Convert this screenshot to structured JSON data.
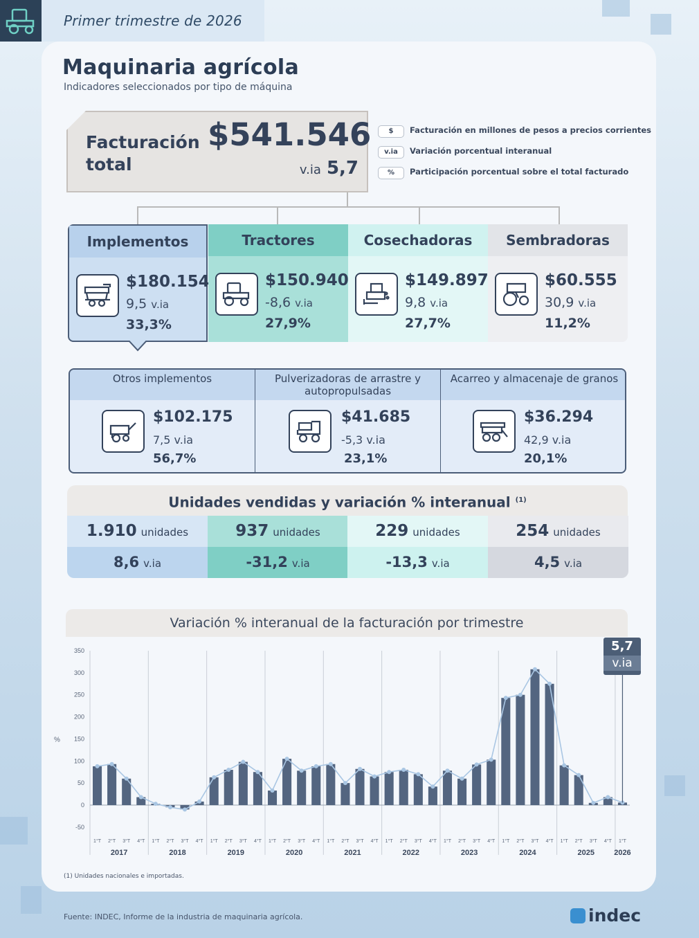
{
  "header": {
    "period": "Primer trimestre de 2026",
    "title": "Maquinaria agrícola",
    "subtitle": "Indicadores seleccionados por tipo de máquina"
  },
  "total": {
    "label_line1": "Facturación",
    "label_line2": "total",
    "value": "$541.546",
    "via_label": "v.ia",
    "via_value": "5,7"
  },
  "legend": [
    {
      "tag": "$",
      "text": "Facturación en millones de pesos a precios corrientes"
    },
    {
      "tag": "v.ia",
      "text": "Variación porcentual interanual"
    },
    {
      "tag": "%",
      "text": "Participación porcentual sobre el total facturado"
    }
  ],
  "categories": [
    {
      "name": "Implementos",
      "value": "$180.154",
      "via": "9,5",
      "via_label": "v.ia",
      "pct": "33,3%",
      "icon": "implement-icon",
      "color": "#cddff2",
      "head_color": "#b8d1ec"
    },
    {
      "name": "Tractores",
      "value": "$150.940",
      "via": "-8,6",
      "via_label": "v.ia",
      "pct": "27,9%",
      "icon": "tractor-icon",
      "color": "#a9e0d9",
      "head_color": "#7fcfc5"
    },
    {
      "name": "Cosechadoras",
      "value": "$149.897",
      "via": "9,8",
      "via_label": "v.ia",
      "pct": "27,7%",
      "icon": "harvester-icon",
      "color": "#e3f7f6",
      "head_color": "#d0f2f0"
    },
    {
      "name": "Sembradoras",
      "value": "$60.555",
      "via": "30,9",
      "via_label": "v.ia",
      "pct": "11,2%",
      "icon": "seeder-icon",
      "color": "#eeeff2",
      "head_color": "#e2e4e8"
    }
  ],
  "implementos_sub": [
    {
      "name": "Otros implementos",
      "value": "$102.175",
      "via": "7,5",
      "via_label": "v.ia",
      "pct": "56,7%",
      "icon": "trailer-icon"
    },
    {
      "name": "Pulverizadoras de arrastre y autopropulsadas",
      "value": "$41.685",
      "via": "-5,3",
      "via_label": "v.ia",
      "pct": "23,1%",
      "icon": "sprayer-icon"
    },
    {
      "name": "Acarreo y almacenaje de granos",
      "value": "$36.294",
      "via": "42,9",
      "via_label": "v.ia",
      "pct": "20,1%",
      "icon": "grain-cart-icon"
    }
  ],
  "units": {
    "title": "Unidades vendidas y variación % interanual",
    "note_mark": "(1)",
    "unit_word": "unidades",
    "via_label": "v.ia",
    "items": [
      {
        "units": "1.910",
        "via": "8,6",
        "color_top": "#d7e6f5",
        "color_bot": "#bcd5ee"
      },
      {
        "units": "937",
        "via": "-31,2",
        "color_top": "#a9e0d9",
        "color_bot": "#7fcfc5"
      },
      {
        "units": "229",
        "via": "-13,3",
        "color_top": "#e3f7f6",
        "color_bot": "#cdf2ef"
      },
      {
        "units": "254",
        "via": "4,5",
        "color_top": "#e9eaee",
        "color_bot": "#d5d8df"
      }
    ]
  },
  "chart_data": {
    "type": "bar",
    "title": "Variación % interanual de la facturación por trimestre",
    "ylabel": "%",
    "ylim": [
      -50,
      350
    ],
    "yticks": [
      -50,
      0,
      50,
      100,
      150,
      200,
      250,
      300,
      350
    ],
    "years": [
      "2017",
      "2018",
      "2019",
      "2020",
      "2021",
      "2022",
      "2023",
      "2024",
      "2025",
      "2026"
    ],
    "quarter_labels": [
      "1°T",
      "2°T",
      "3°T",
      "4°T"
    ],
    "values": [
      88,
      93,
      60,
      18,
      3,
      -5,
      -10,
      8,
      63,
      80,
      98,
      75,
      33,
      105,
      78,
      88,
      93,
      50,
      82,
      65,
      75,
      80,
      70,
      42,
      78,
      60,
      92,
      103,
      243,
      250,
      308,
      275,
      90,
      68,
      5,
      18,
      5.7
    ],
    "callout": {
      "value": "5,7",
      "label": "v.ia"
    },
    "bar_color": "#536580",
    "line_color": "#a9c6e3"
  },
  "footnote": "(1) Unidades nacionales e importadas.",
  "source": "Fuente: INDEC, Informe de la industria de maquinaria agrícola.",
  "logo": "indec"
}
